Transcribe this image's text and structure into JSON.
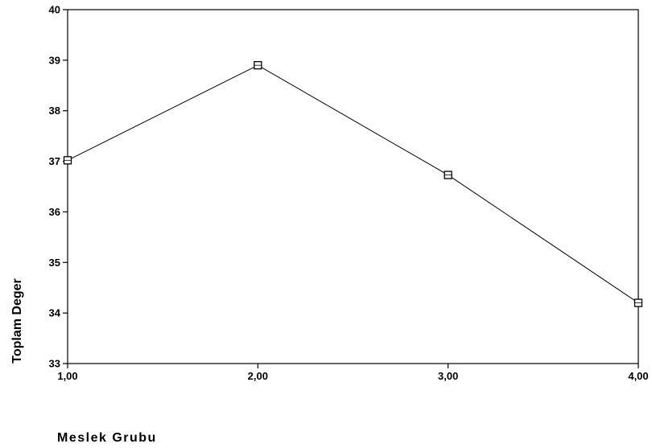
{
  "chart_data": {
    "type": "line",
    "title": "",
    "xlabel": "Meslek Grubu",
    "ylabel": "Toplam Deger",
    "x": [
      1,
      2,
      3,
      4
    ],
    "x_tick_labels": [
      "1,00",
      "2,00",
      "3,00",
      "4,00"
    ],
    "xlim": [
      1,
      4
    ],
    "y_tick_labels": [
      "33",
      "34",
      "35",
      "36",
      "37",
      "38",
      "39",
      "40"
    ],
    "ylim": [
      33,
      40
    ],
    "grid": false,
    "legend": "none",
    "marker": "square",
    "series": [
      {
        "values": [
          37.02,
          38.9,
          36.73,
          34.2
        ]
      }
    ],
    "colors": {
      "line": "#000000",
      "marker": "#000000",
      "background": "#ffffff"
    }
  }
}
